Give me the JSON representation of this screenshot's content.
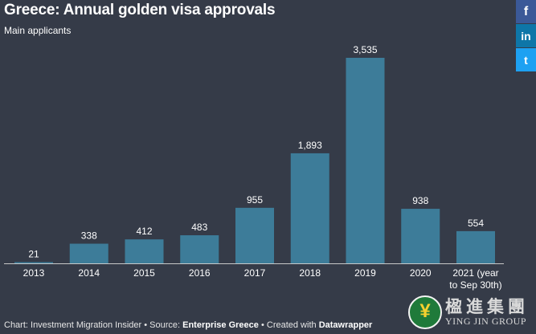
{
  "header": {
    "title": "Greece: Annual golden visa approvals",
    "subtitle": "Main applicants"
  },
  "social": [
    {
      "name": "facebook",
      "glyph": "f"
    },
    {
      "name": "linkedin",
      "glyph": "in"
    },
    {
      "name": "twitter",
      "glyph": "t"
    }
  ],
  "footer": {
    "prefix": "Chart: Investment Migration Insider • Source: ",
    "source": "Enterprise Greece",
    "middle": " • Created with ",
    "tool": "Datawrapper"
  },
  "watermark": {
    "cn": "楹進集團",
    "en": "YING JIN GROUP"
  },
  "chart_data": {
    "type": "bar",
    "categories": [
      "2013",
      "2014",
      "2015",
      "2016",
      "2017",
      "2018",
      "2019",
      "2020",
      "2021 (year\nto Sep 30th)"
    ],
    "values": [
      21,
      338,
      412,
      483,
      955,
      1893,
      3535,
      938,
      554
    ],
    "value_labels": [
      "21",
      "338",
      "412",
      "483",
      "955",
      "1,893",
      "3,535",
      "938",
      "554"
    ],
    "ylim": [
      0,
      3535
    ],
    "bar_color": "#3d7c99",
    "grid": false,
    "legend": "none"
  }
}
